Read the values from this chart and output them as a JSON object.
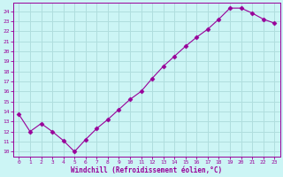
{
  "x": [
    0,
    1,
    2,
    3,
    4,
    5,
    6,
    7,
    8,
    9,
    10,
    11,
    12,
    13,
    14,
    15,
    16,
    17,
    18,
    19,
    20,
    21,
    22,
    23
  ],
  "y": [
    13.7,
    12.0,
    12.8,
    12.0,
    11.1,
    10.0,
    11.2,
    12.3,
    13.2,
    14.2,
    15.2,
    16.0,
    17.3,
    18.5,
    19.5,
    20.5,
    21.4,
    22.2,
    23.2,
    24.3,
    24.3,
    23.8,
    23.2,
    22.8
  ],
  "line_color": "#990099",
  "marker": "D",
  "marker_size": 2.5,
  "bg_color": "#ccf5f5",
  "grid_color": "#b0dede",
  "xlabel": "Windchill (Refroidissement éolien,°C)",
  "xlabel_color": "#990099",
  "tick_color": "#990099",
  "ylim": [
    9.5,
    24.8
  ],
  "xlim": [
    -0.5,
    23.5
  ],
  "yticks": [
    10,
    11,
    12,
    13,
    14,
    15,
    16,
    17,
    18,
    19,
    20,
    21,
    22,
    23,
    24
  ],
  "xticks": [
    0,
    1,
    2,
    3,
    4,
    5,
    6,
    7,
    8,
    9,
    10,
    11,
    12,
    13,
    14,
    15,
    16,
    17,
    18,
    19,
    20,
    21,
    22,
    23
  ]
}
